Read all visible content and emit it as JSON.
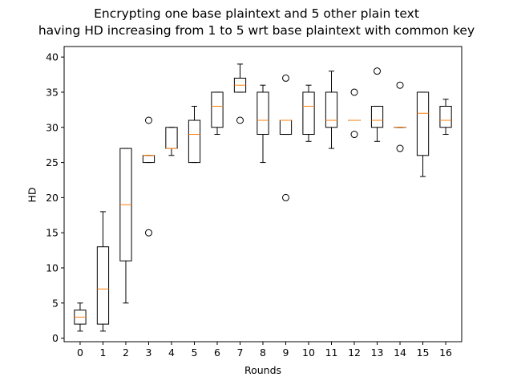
{
  "chart_data": {
    "type": "boxplot",
    "title_lines": [
      "Encrypting one base plaintext and 5 other plain text",
      "having HD increasing from 1 to 5 wrt base plaintext with common key"
    ],
    "xlabel": "Rounds",
    "ylabel": "HD",
    "ylim": [
      -0.5,
      41.5
    ],
    "yticks": [
      0,
      5,
      10,
      15,
      20,
      25,
      30,
      35,
      40
    ],
    "categories": [
      "0",
      "1",
      "2",
      "3",
      "4",
      "5",
      "6",
      "7",
      "8",
      "9",
      "10",
      "11",
      "12",
      "13",
      "14",
      "15",
      "16"
    ],
    "boxes": [
      {
        "whislo": 1,
        "q1": 2,
        "med": 3,
        "q3": 4,
        "whishi": 5,
        "fliers": []
      },
      {
        "whislo": 1,
        "q1": 2,
        "med": 7,
        "q3": 13,
        "whishi": 18,
        "fliers": []
      },
      {
        "whislo": 5,
        "q1": 11,
        "med": 19,
        "q3": 27,
        "whishi": 27,
        "fliers": []
      },
      {
        "whislo": 25,
        "q1": 25,
        "med": 26,
        "q3": 26,
        "whishi": 26,
        "fliers": [
          15,
          31
        ]
      },
      {
        "whislo": 26,
        "q1": 27,
        "med": 27,
        "q3": 30,
        "whishi": 30,
        "fliers": []
      },
      {
        "whislo": 25,
        "q1": 25,
        "med": 29,
        "q3": 31,
        "whishi": 33,
        "fliers": []
      },
      {
        "whislo": 29,
        "q1": 30,
        "med": 33,
        "q3": 35,
        "whishi": 35,
        "fliers": []
      },
      {
        "whislo": 35,
        "q1": 35,
        "med": 36,
        "q3": 37,
        "whishi": 39,
        "fliers": [
          31
        ]
      },
      {
        "whislo": 25,
        "q1": 29,
        "med": 31,
        "q3": 35,
        "whishi": 36,
        "fliers": []
      },
      {
        "whislo": 29,
        "q1": 29,
        "med": 31,
        "q3": 31,
        "whishi": 31,
        "fliers": [
          20,
          37
        ]
      },
      {
        "whislo": 28,
        "q1": 29,
        "med": 33,
        "q3": 35,
        "whishi": 36,
        "fliers": []
      },
      {
        "whislo": 27,
        "q1": 30,
        "med": 31,
        "q3": 35,
        "whishi": 38,
        "fliers": []
      },
      {
        "whislo": 31,
        "q1": 31,
        "med": 31,
        "q3": 31,
        "whishi": 31,
        "fliers": [
          29,
          35
        ]
      },
      {
        "whislo": 28,
        "q1": 30,
        "med": 31,
        "q3": 33,
        "whishi": 33,
        "fliers": [
          38
        ]
      },
      {
        "whislo": 30,
        "q1": 30,
        "med": 30,
        "q3": 30,
        "whishi": 30,
        "fliers": [
          27,
          36
        ]
      },
      {
        "whislo": 23,
        "q1": 26,
        "med": 32,
        "q3": 35,
        "whishi": 35,
        "fliers": []
      },
      {
        "whislo": 29,
        "q1": 30,
        "med": 31,
        "q3": 33,
        "whishi": 34,
        "fliers": []
      }
    ],
    "colors": {
      "box": "#000000",
      "median": "#ff7f0e",
      "flier": "#000000"
    },
    "grid": false,
    "legend": "none"
  }
}
